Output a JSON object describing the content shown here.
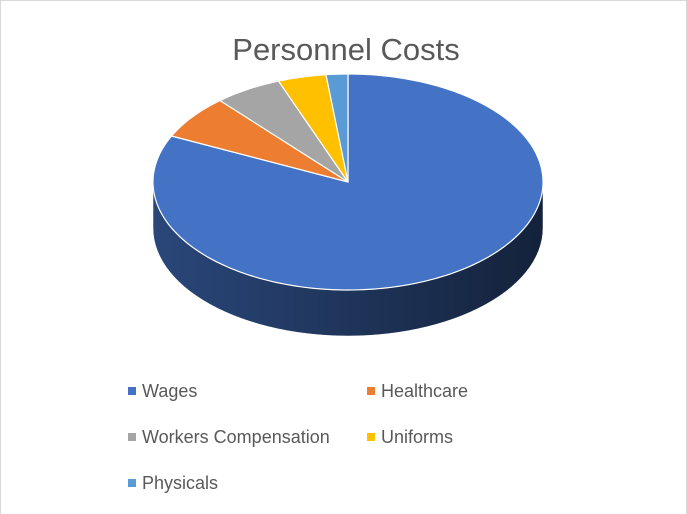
{
  "chart_data": {
    "type": "pie",
    "title": "Personnel Costs",
    "categories": [
      "Wages",
      "Healthcare",
      "Workers Compensation",
      "Uniforms",
      "Physicals"
    ],
    "values": [
      82,
      6.6,
      5.6,
      4,
      1.8
    ],
    "colors": [
      "#4472c4",
      "#ed7d31",
      "#a5a5a5",
      "#ffc000",
      "#5b9bd5"
    ],
    "legend": "bottom"
  }
}
